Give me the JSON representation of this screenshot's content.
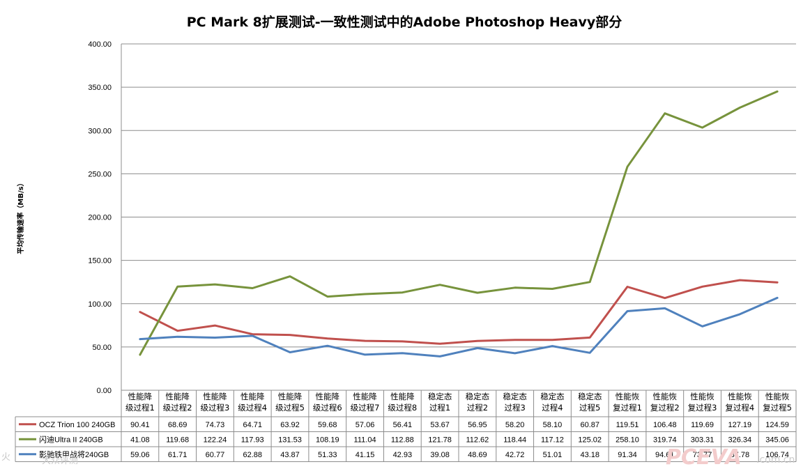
{
  "chart_data": {
    "type": "line",
    "title": "PC Mark 8扩展测试-一致性测试中的Adobe  Photoshop Heavy部分",
    "ylabel": "平均传输速率（MB/s）",
    "xlabel": "",
    "ylim": [
      0,
      400
    ],
    "yticks": [
      "0.00",
      "50.00",
      "100.00",
      "150.00",
      "200.00",
      "250.00",
      "300.00",
      "350.00",
      "400.00"
    ],
    "grid": true,
    "legend": "data-table-below",
    "categories": [
      [
        "性能降",
        "级过程1"
      ],
      [
        "性能降",
        "级过程2"
      ],
      [
        "性能降",
        "级过程3"
      ],
      [
        "性能降",
        "级过程4"
      ],
      [
        "性能降",
        "级过程5"
      ],
      [
        "性能降",
        "级过程6"
      ],
      [
        "性能降",
        "级过程7"
      ],
      [
        "性能降",
        "级过程8"
      ],
      [
        "稳定态",
        "过程1"
      ],
      [
        "稳定态",
        "过程2"
      ],
      [
        "稳定态",
        "过程3"
      ],
      [
        "稳定态",
        "过程4"
      ],
      [
        "稳定态",
        "过程5"
      ],
      [
        "性能恢",
        "复过程1"
      ],
      [
        "性能恢",
        "复过程2"
      ],
      [
        "性能恢",
        "复过程3"
      ],
      [
        "性能恢",
        "复过程4"
      ],
      [
        "性能恢",
        "复过程5"
      ]
    ],
    "series": [
      {
        "name": "OCZ Trion 100 240GB",
        "color": "#c0504d",
        "values": [
          90.41,
          68.69,
          74.73,
          64.71,
          63.92,
          59.68,
          57.06,
          56.41,
          53.67,
          56.95,
          58.2,
          58.1,
          60.87,
          119.51,
          106.48,
          119.69,
          127.19,
          124.59
        ],
        "labels": [
          "90.41",
          "68.69",
          "74.73",
          "64.71",
          "63.92",
          "59.68",
          "57.06",
          "56.41",
          "53.67",
          "56.95",
          "58.20",
          "58.10",
          "60.87",
          "119.51",
          "106.48",
          "119.69",
          "127.19",
          "124.59"
        ]
      },
      {
        "name": "闪迪Ultra II 240GB",
        "color": "#77933c",
        "values": [
          41.08,
          119.68,
          122.24,
          117.93,
          131.53,
          108.19,
          111.04,
          112.88,
          121.78,
          112.62,
          118.44,
          117.12,
          125.02,
          258.1,
          319.74,
          303.31,
          326.34,
          345.06
        ],
        "labels": [
          "41.08",
          "119.68",
          "122.24",
          "117.93",
          "131.53",
          "108.19",
          "111.04",
          "112.88",
          "121.78",
          "112.62",
          "118.44",
          "117.12",
          "125.02",
          "258.10",
          "319.74",
          "303.31",
          "326.34",
          "345.06"
        ]
      },
      {
        "name": "影驰铁甲战将240GB",
        "color": "#4f81bd",
        "values": [
          59.06,
          61.71,
          60.77,
          62.88,
          43.87,
          51.33,
          41.15,
          42.93,
          39.08,
          48.69,
          42.72,
          51.01,
          43.18,
          91.34,
          94.61,
          73.77,
          87.78,
          106.74
        ],
        "labels": [
          "59.06",
          "61.71",
          "60.77",
          "62.88",
          "43.87",
          "51.33",
          "41.15",
          "42.93",
          "39.08",
          "48.69",
          "42.72",
          "51.01",
          "43.18",
          "91.34",
          "94.61",
          "73.77",
          "87.78",
          "106.74"
        ]
      }
    ]
  },
  "watermark": {
    "brand": "PCEVA",
    "domain": ".com.cn",
    "left_mark": "火",
    "left_text": "大众评测"
  }
}
